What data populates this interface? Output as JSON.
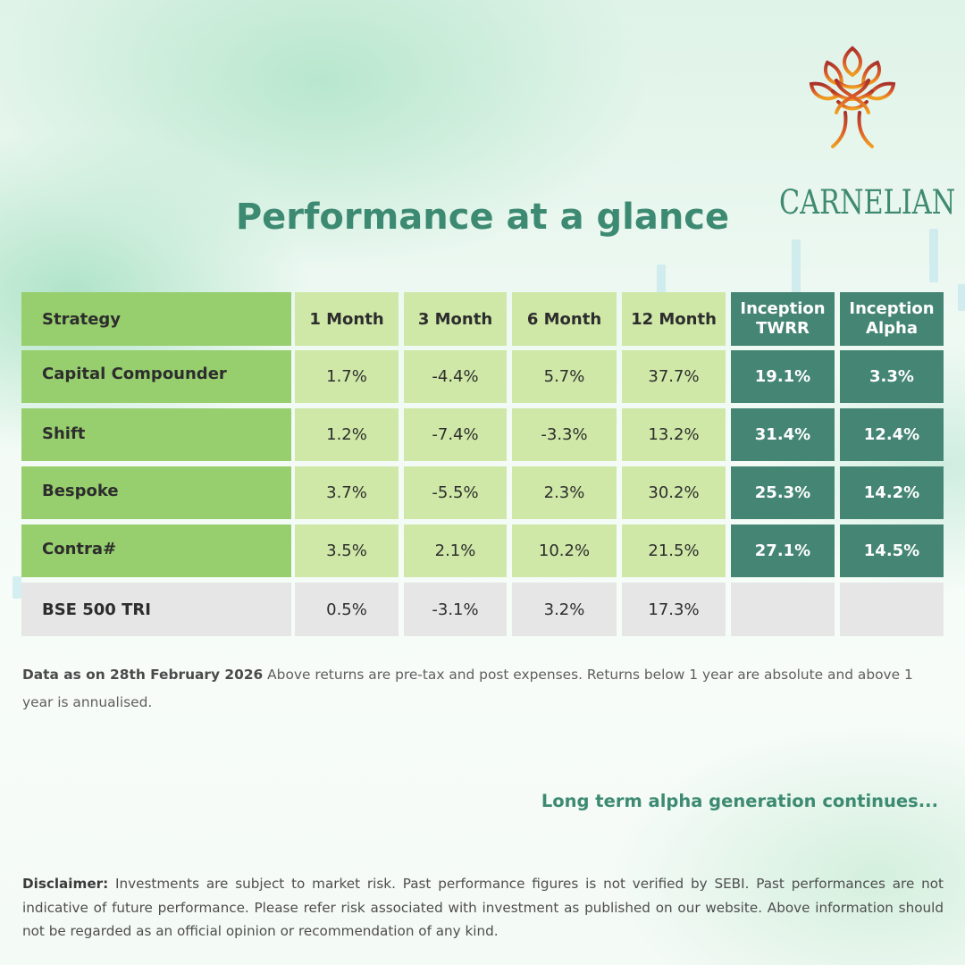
{
  "brand": {
    "name": "CARNELIAN",
    "logo_icon": "carnelian-tree-knot-logo"
  },
  "title": "Performance at a glance",
  "table": {
    "headers": {
      "strategy": "Strategy",
      "m1": "1 Month",
      "m3": "3 Month",
      "m6": "6 Month",
      "m12": "12 Month",
      "twrr": [
        "Inception",
        "TWRR"
      ],
      "alpha": [
        "Inception",
        "Alpha"
      ]
    },
    "rows": [
      {
        "name": "Capital Compounder",
        "m1": "1.7%",
        "m3": "-4.4%",
        "m6": "5.7%",
        "m12": "37.7%",
        "twrr": "19.1%",
        "alpha": "3.3%"
      },
      {
        "name": "Shift",
        "m1": "1.2%",
        "m3": "-7.4%",
        "m6": "-3.3%",
        "m12": "13.2%",
        "twrr": "31.4%",
        "alpha": "12.4%"
      },
      {
        "name": "Bespoke",
        "m1": "3.7%",
        "m3": "-5.5%",
        "m6": "2.3%",
        "m12": "30.2%",
        "twrr": "25.3%",
        "alpha": "14.2%"
      },
      {
        "name": "Contra#",
        "m1": "3.5%",
        "m3": "2.1%",
        "m6": "10.2%",
        "m12": "21.5%",
        "twrr": "27.1%",
        "alpha": "14.5%"
      }
    ],
    "benchmark": {
      "name": "BSE 500 TRI",
      "m1": "0.5%",
      "m3": "-3.1%",
      "m6": "3.2%",
      "m12": "17.3%",
      "twrr": "",
      "alpha": ""
    }
  },
  "note": {
    "date_label": "Data as on 28th February 2026",
    "text": " Above returns are pre-tax and post expenses. Returns below 1 year are absolute and above 1 year is annualised."
  },
  "tagline": "Long term alpha generation continues...",
  "disclaimer": {
    "label": "Disclaimer:",
    "text": " Investments are subject to market risk. Past performance figures is not verified by SEBI. Past performances are not indicative of future performance. Please refer risk associated with investment as published on our website. Above information should not be regarded as an official opinion or recommendation of any kind."
  },
  "colors": {
    "brand_teal": "#3d8a72",
    "strategy_green": "#97cf6e",
    "period_light_green": "#cfe8a7",
    "inception_teal": "#458573",
    "benchmark_gray": "#e6e6e6"
  }
}
